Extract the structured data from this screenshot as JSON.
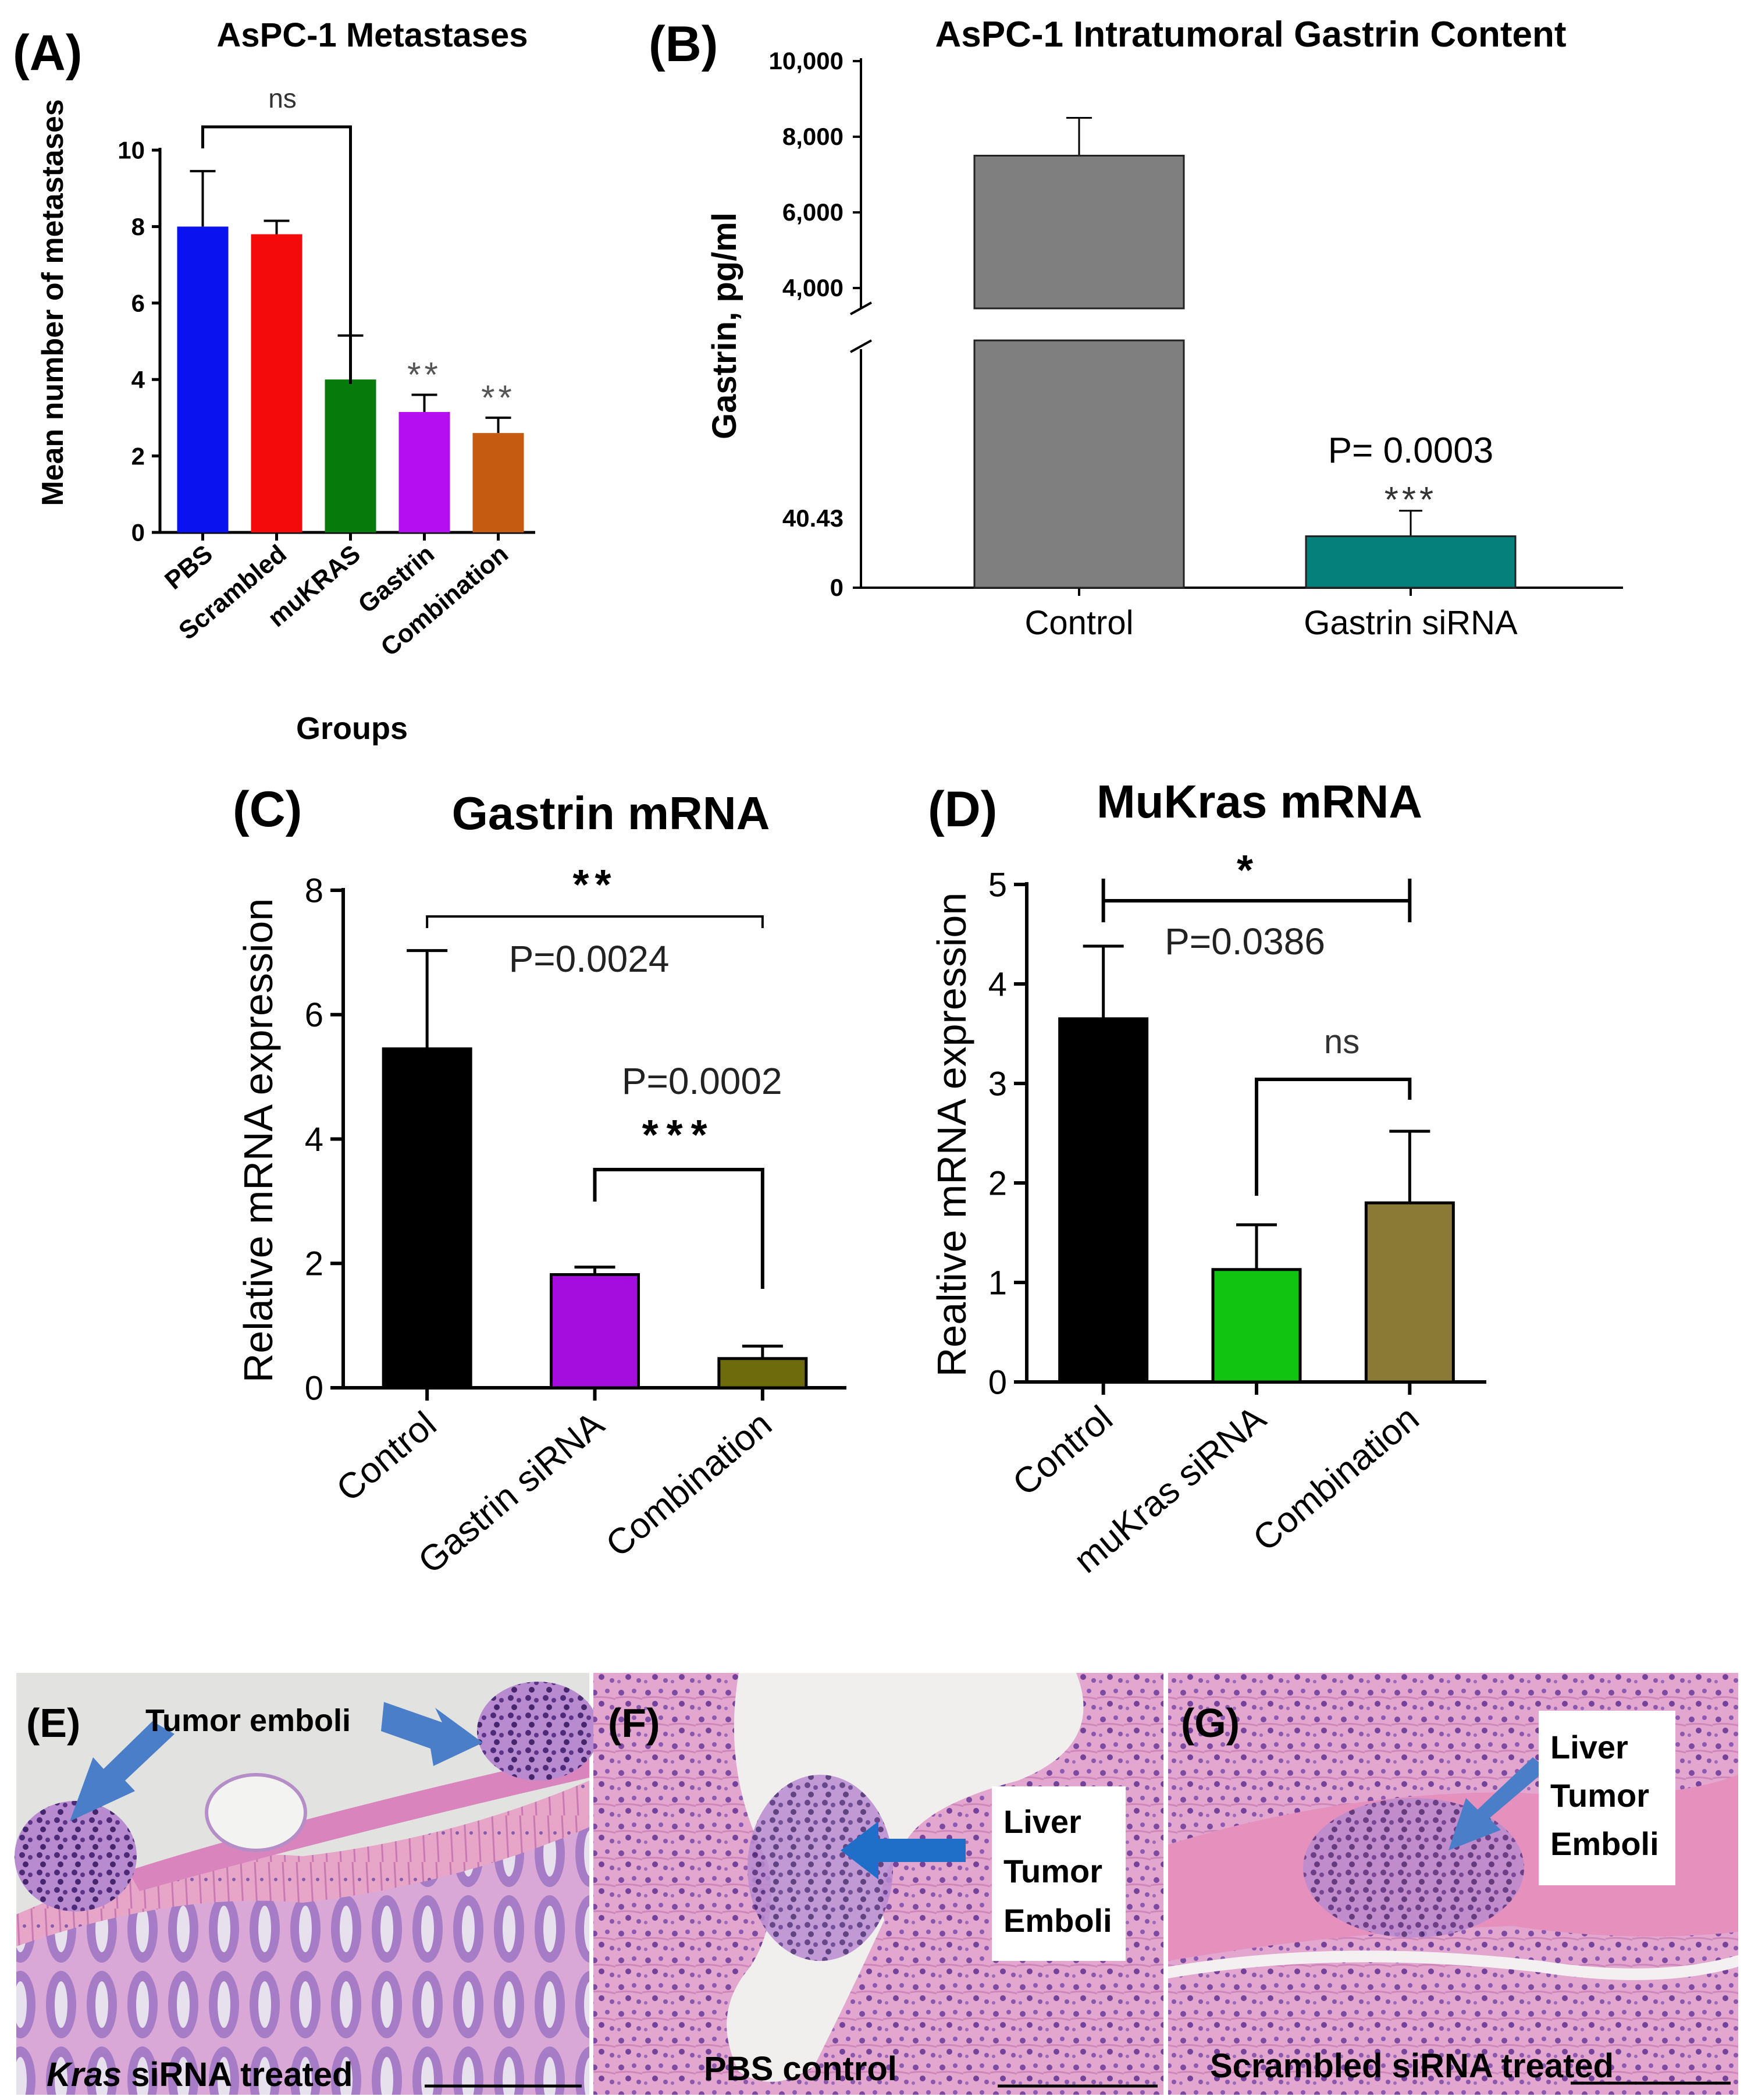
{
  "figure_title": "",
  "colors": {
    "pbs": "#0a12f0",
    "scrambled": "#f40a0a",
    "mukras_a": "#067a0b",
    "gastrin_a": "#b50ef0",
    "combination_a": "#c55a11",
    "control_b": "#7f7f7f",
    "gastrin_sirna_b": "#06807a",
    "black": "#000000",
    "gastrin_sirna_c": "#a50cde",
    "combination_c": "#6d6b0c",
    "mukras_sirna_d": "#11c411",
    "combination_d": "#8a7a36",
    "histo_blue_arrow": "#4a7ec9",
    "histo_pink": "#d68fc0",
    "histo_purple": "#7a4a9c"
  },
  "chart_data": [
    {
      "id": "A",
      "panel_label": "(A)",
      "type": "bar",
      "title": "AsPC-1 Metastases",
      "xlabel": "Groups",
      "ylabel": "Mean number of metastases",
      "ylim": [
        0,
        10
      ],
      "yticks": [
        "0",
        "2",
        "4",
        "6",
        "8",
        "10"
      ],
      "categories": [
        "PBS",
        "Scrambled",
        "muKRAS",
        "Gastrin",
        "Combination"
      ],
      "values": [
        8.0,
        7.8,
        4.0,
        3.15,
        2.6
      ],
      "errors": [
        1.45,
        0.35,
        1.15,
        0.45,
        0.4
      ],
      "significance": [
        "",
        "",
        "",
        "**",
        "**"
      ],
      "bracket": {
        "from": "PBS",
        "to": "muKRAS",
        "label": "ns"
      }
    },
    {
      "id": "B",
      "panel_label": "(B)",
      "type": "bar",
      "title": "AsPC-1 Intratumoral Gastrin Content",
      "ylabel": "Gastrin, pg/ml",
      "xlabel": "",
      "ylim": [
        0,
        10000
      ],
      "axis_break": true,
      "yticks": [
        "10,000",
        "8,000",
        "6,000",
        "4,000",
        "40.43",
        "0"
      ],
      "categories": [
        "Control",
        "Gastrin siRNA"
      ],
      "values": [
        7500,
        40.43
      ],
      "errors": [
        1000,
        20
      ],
      "annotation": {
        "p_value": "P= 0.0003",
        "stars": "***"
      }
    },
    {
      "id": "C",
      "panel_label": "(C)",
      "type": "bar",
      "title": "Gastrin mRNA",
      "ylabel": "Relative mRNA expression",
      "xlabel": "",
      "ylim": [
        0,
        8
      ],
      "yticks": [
        "0",
        "2",
        "4",
        "6",
        "8"
      ],
      "categories": [
        "Control",
        "Gastrin siRNA",
        "Combination"
      ],
      "values": [
        5.45,
        1.82,
        0.47
      ],
      "errors": [
        1.58,
        0.12,
        0.2
      ],
      "brackets": [
        {
          "from": "Control",
          "to": "Combination",
          "stars": "**",
          "p": "P=0.0024"
        },
        {
          "from": "Gastrin siRNA",
          "to": "Combination",
          "stars": "***",
          "p": "P=0.0002"
        }
      ]
    },
    {
      "id": "D",
      "panel_label": "(D)",
      "type": "bar",
      "title": "MuKras mRNA",
      "ylabel": "Realtive mRNA expression",
      "xlabel": "",
      "ylim": [
        0,
        5
      ],
      "yticks": [
        "0",
        "1",
        "2",
        "3",
        "4",
        "5"
      ],
      "categories": [
        "Control",
        "muKras siRNA",
        "Combination"
      ],
      "values": [
        3.65,
        1.13,
        1.8
      ],
      "errors": [
        0.73,
        0.45,
        0.72
      ],
      "brackets": [
        {
          "from": "Control",
          "to": "Combination",
          "stars": "*",
          "p": "P=0.0386"
        },
        {
          "from": "muKras siRNA",
          "to": "Combination",
          "stars": "ns",
          "p": ""
        }
      ]
    }
  ],
  "histology": [
    {
      "id": "E",
      "panel_label": "(E)",
      "callout": "Tumor emboli",
      "caption_italic": "Kras",
      "caption_rest": " siRNA treated"
    },
    {
      "id": "F",
      "panel_label": "(F)",
      "callout_lines": [
        "Liver",
        "Tumor",
        "Emboli"
      ],
      "caption": "PBS control"
    },
    {
      "id": "G",
      "panel_label": "(G)",
      "callout_lines": [
        "Liver",
        "Tumor",
        "Emboli"
      ],
      "caption": "Scrambled siRNA treated"
    }
  ]
}
